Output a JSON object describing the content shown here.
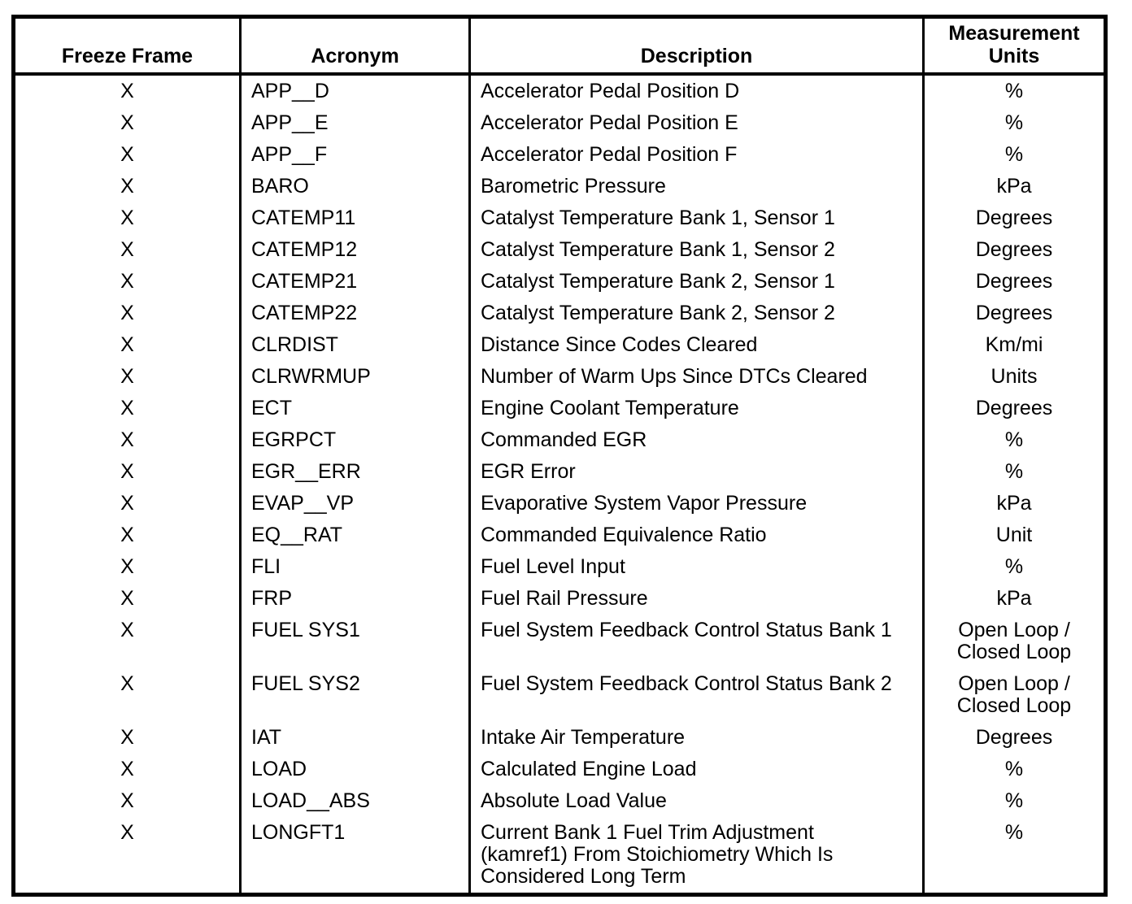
{
  "page": {
    "background_color": "#ffffff",
    "text_color": "#000000",
    "border_color": "#000000"
  },
  "table": {
    "headers": {
      "freeze_frame": "Freeze Frame",
      "acronym": "Acronym",
      "description": "Description",
      "units": "Measurement\nUnits"
    },
    "rows": [
      {
        "freeze_frame": "X",
        "acronym": "APP__D",
        "description": "Accelerator Pedal Position D",
        "units": "%"
      },
      {
        "freeze_frame": "X",
        "acronym": "APP__E",
        "description": "Accelerator Pedal Position E",
        "units": "%"
      },
      {
        "freeze_frame": "X",
        "acronym": "APP__F",
        "description": "Accelerator Pedal Position F",
        "units": "%"
      },
      {
        "freeze_frame": "X",
        "acronym": "BARO",
        "description": "Barometric Pressure",
        "units": "kPa"
      },
      {
        "freeze_frame": "X",
        "acronym": "CATEMP11",
        "description": "Catalyst Temperature Bank 1, Sensor 1",
        "units": "Degrees"
      },
      {
        "freeze_frame": "X",
        "acronym": "CATEMP12",
        "description": "Catalyst Temperature Bank 1, Sensor 2",
        "units": "Degrees"
      },
      {
        "freeze_frame": "X",
        "acronym": "CATEMP21",
        "description": "Catalyst Temperature Bank 2, Sensor 1",
        "units": "Degrees"
      },
      {
        "freeze_frame": "X",
        "acronym": "CATEMP22",
        "description": "Catalyst Temperature Bank 2, Sensor 2",
        "units": "Degrees"
      },
      {
        "freeze_frame": "X",
        "acronym": "CLRDIST",
        "description": "Distance Since Codes Cleared",
        "units": "Km/mi"
      },
      {
        "freeze_frame": "X",
        "acronym": "CLRWRMUP",
        "description": "Number of Warm Ups Since DTCs Cleared",
        "units": "Units"
      },
      {
        "freeze_frame": "X",
        "acronym": "ECT",
        "description": "Engine Coolant Temperature",
        "units": "Degrees"
      },
      {
        "freeze_frame": "X",
        "acronym": "EGRPCT",
        "description": "Commanded EGR",
        "units": "%"
      },
      {
        "freeze_frame": "X",
        "acronym": "EGR__ERR",
        "description": "EGR Error",
        "units": "%"
      },
      {
        "freeze_frame": "X",
        "acronym": "EVAP__VP",
        "description": "Evaporative System Vapor Pressure",
        "units": "kPa"
      },
      {
        "freeze_frame": "X",
        "acronym": "EQ__RAT",
        "description": "Commanded Equivalence Ratio",
        "units": "Unit"
      },
      {
        "freeze_frame": "X",
        "acronym": "FLI",
        "description": "Fuel Level Input",
        "units": "%"
      },
      {
        "freeze_frame": "X",
        "acronym": "FRP",
        "description": "Fuel Rail Pressure",
        "units": "kPa"
      },
      {
        "freeze_frame": "X",
        "acronym": "FUEL SYS1",
        "description": "Fuel System Feedback Control Status Bank 1",
        "units": "Open Loop /\nClosed Loop"
      },
      {
        "freeze_frame": "X",
        "acronym": "FUEL SYS2",
        "description": "Fuel System Feedback Control Status Bank 2",
        "units": "Open Loop /\nClosed Loop"
      },
      {
        "freeze_frame": "X",
        "acronym": "IAT",
        "description": "Intake Air Temperature",
        "units": "Degrees"
      },
      {
        "freeze_frame": "X",
        "acronym": "LOAD",
        "description": "Calculated Engine Load",
        "units": "%"
      },
      {
        "freeze_frame": "X",
        "acronym": "LOAD__ABS",
        "description": "Absolute Load Value",
        "units": "%"
      },
      {
        "freeze_frame": "X",
        "acronym": "LONGFT1",
        "description": "Current Bank 1 Fuel Trim Adjustment\n(kamref1) From Stoichiometry Which Is\nConsidered Long Term",
        "units": "%"
      }
    ]
  }
}
